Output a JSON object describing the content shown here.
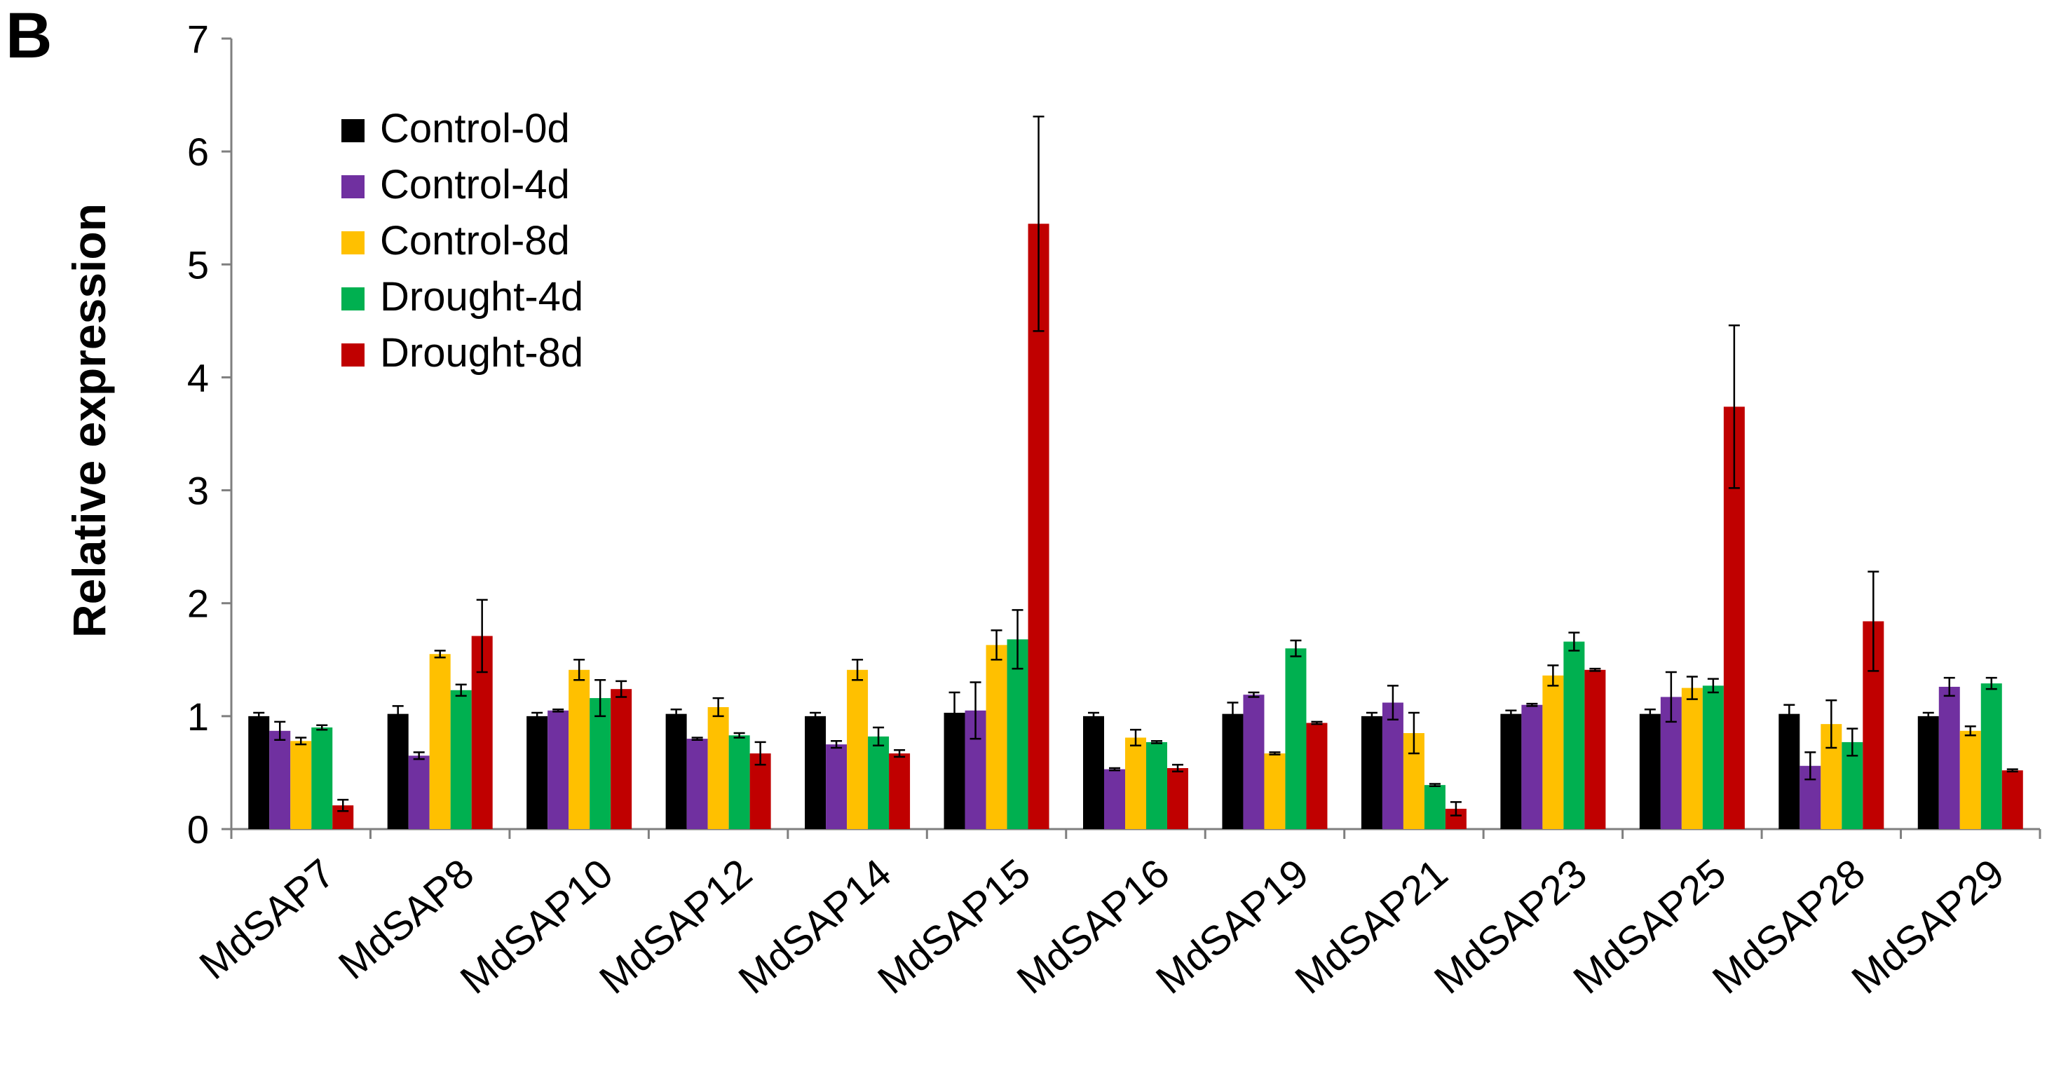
{
  "panel_label": "B",
  "chart_data": {
    "type": "bar",
    "title": "",
    "xlabel": "",
    "ylabel": "Relative expression",
    "ylim": [
      0,
      7
    ],
    "yticks": [
      0,
      1,
      2,
      3,
      4,
      5,
      6,
      7
    ],
    "grid": false,
    "legend_position": "top-left",
    "categories": [
      "MdSAP7",
      "MdSAP8",
      "MdSAP10",
      "MdSAP12",
      "MdSAP14",
      "MdSAP15",
      "MdSAP16",
      "MdSAP19",
      "MdSAP21",
      "MdSAP23",
      "MdSAP25",
      "MdSAP28",
      "MdSAP29"
    ],
    "series": [
      {
        "name": "Control-0d",
        "color": "#000000",
        "values": [
          1.0,
          1.02,
          1.0,
          1.02,
          1.0,
          1.03,
          1.0,
          1.02,
          1.0,
          1.02,
          1.02,
          1.02,
          1.0
        ],
        "errors": [
          0.03,
          0.07,
          0.03,
          0.04,
          0.03,
          0.18,
          0.03,
          0.1,
          0.03,
          0.03,
          0.04,
          0.08,
          0.03
        ]
      },
      {
        "name": "Control-4d",
        "color": "#7030A0",
        "values": [
          0.87,
          0.65,
          1.05,
          0.8,
          0.75,
          1.05,
          0.53,
          1.19,
          1.12,
          1.1,
          1.17,
          0.56,
          1.26
        ],
        "errors": [
          0.08,
          0.03,
          0.01,
          0.01,
          0.03,
          0.25,
          0.01,
          0.02,
          0.15,
          0.01,
          0.22,
          0.12,
          0.08
        ]
      },
      {
        "name": "Control-8d",
        "color": "#FFC000",
        "values": [
          0.78,
          1.55,
          1.41,
          1.08,
          1.41,
          1.63,
          0.81,
          0.67,
          0.85,
          1.36,
          1.25,
          0.93,
          0.87
        ],
        "errors": [
          0.03,
          0.03,
          0.09,
          0.08,
          0.09,
          0.13,
          0.07,
          0.01,
          0.18,
          0.09,
          0.1,
          0.21,
          0.04
        ]
      },
      {
        "name": "Drought-4d",
        "color": "#00B050",
        "values": [
          0.9,
          1.23,
          1.16,
          0.83,
          0.82,
          1.68,
          0.77,
          1.6,
          0.39,
          1.66,
          1.27,
          0.77,
          1.29
        ],
        "errors": [
          0.02,
          0.05,
          0.16,
          0.02,
          0.08,
          0.26,
          0.01,
          0.07,
          0.01,
          0.08,
          0.06,
          0.12,
          0.05
        ]
      },
      {
        "name": "Drought-8d",
        "color": "#C00000",
        "values": [
          0.21,
          1.71,
          1.24,
          0.67,
          0.67,
          5.36,
          0.54,
          0.94,
          0.18,
          1.41,
          3.74,
          1.84,
          0.52
        ],
        "errors": [
          0.05,
          0.32,
          0.07,
          0.1,
          0.03,
          0.95,
          0.03,
          0.01,
          0.06,
          0.01,
          0.72,
          0.44,
          0.01
        ]
      }
    ]
  }
}
